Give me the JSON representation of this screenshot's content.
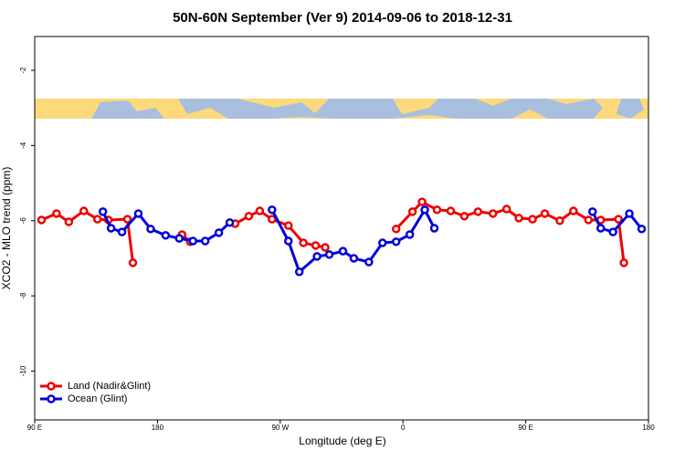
{
  "chart_data": {
    "type": "line",
    "title": "50N-60N September (Ver 9)   2014-09-06 to 2018-12-31",
    "xlabel": "Longitude (deg E)",
    "ylabel": "XCO2 - MLO trend (ppm)",
    "xlim": [
      90,
      540
    ],
    "xticks": [
      {
        "value": 90,
        "label": "90 E"
      },
      180,
      {
        "value": 270,
        "label": "90 W"
      },
      {
        "value": 360,
        "label": "0"
      },
      {
        "value": 450,
        "label": "90 E"
      },
      {
        "value": 540,
        "label": "180"
      }
    ],
    "ylim": [
      -11.3,
      -1.1
    ],
    "yticks": [
      -10,
      -8,
      -6,
      -4,
      -2
    ],
    "legend": "bottom-left",
    "series": [
      {
        "name": "Land (Nadir&Glint)",
        "color": "#ee0000",
        "x": [
          95,
          106,
          115,
          126,
          136,
          144,
          158,
          162,
          null,
          198,
          204,
          null,
          237,
          247,
          255,
          264,
          276,
          287,
          296,
          303,
          null,
          355,
          367,
          374,
          385,
          395,
          405,
          415,
          426,
          436,
          445,
          455,
          464,
          475,
          485,
          496,
          505,
          518,
          522
        ],
        "values": [
          -5.98,
          -5.81,
          -6.03,
          -5.74,
          -5.96,
          -5.98,
          -5.96,
          -7.12,
          null,
          -6.37,
          -6.56,
          null,
          -6.08,
          -5.88,
          -5.74,
          -5.96,
          -6.13,
          -6.59,
          -6.66,
          -6.71,
          null,
          -6.22,
          -5.76,
          -5.5,
          -5.71,
          -5.74,
          -5.88,
          -5.76,
          -5.81,
          -5.69,
          -5.93,
          -5.96,
          -5.81,
          -6.0,
          -5.74,
          -5.98,
          -5.98,
          -5.96,
          -7.12
        ]
      },
      {
        "name": "Ocean (Glint)",
        "color": "#0000dd",
        "x": [
          140,
          146,
          154,
          166,
          175,
          186,
          196,
          206,
          215,
          225,
          233,
          null,
          264,
          276,
          284,
          297,
          306,
          316,
          324,
          335,
          345,
          355,
          365,
          376,
          383,
          null,
          499,
          505,
          514,
          526,
          535
        ],
        "values": [
          -5.76,
          -6.2,
          -6.3,
          -5.81,
          -6.22,
          -6.39,
          -6.47,
          -6.54,
          -6.54,
          -6.32,
          -6.05,
          null,
          -5.71,
          -6.54,
          -7.36,
          -6.95,
          -6.9,
          -6.81,
          -7.0,
          -7.1,
          -6.59,
          -6.56,
          -6.37,
          -5.71,
          -6.2,
          null,
          -5.76,
          -6.2,
          -6.3,
          -5.81,
          -6.22
        ]
      }
    ]
  }
}
